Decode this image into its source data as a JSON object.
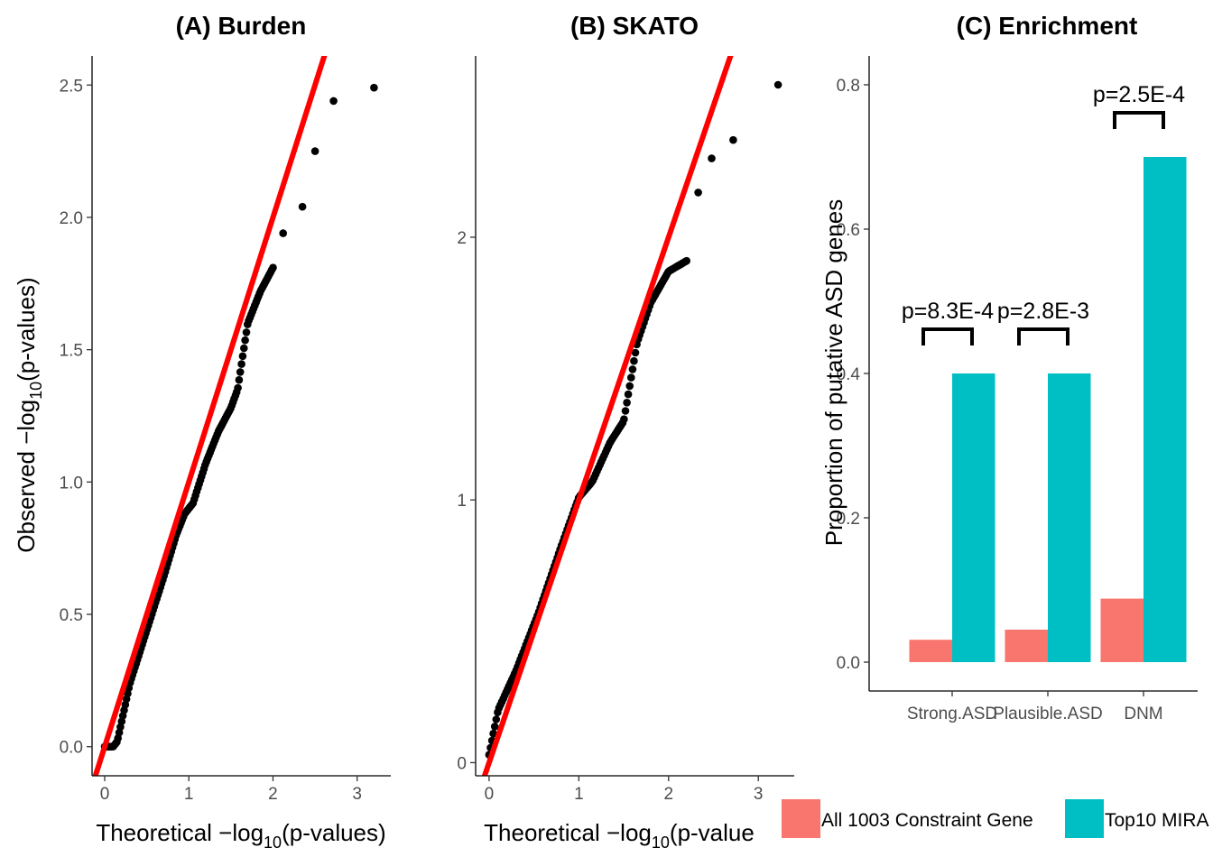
{
  "chart_data": [
    {
      "id": "burden",
      "type": "scatter",
      "title": "(A) Burden",
      "xlabel": {
        "prefix": "Theoretical −log",
        "sub": "10",
        "suffix": "(p-values)"
      },
      "ylabel": {
        "prefix": "Observed −log",
        "sub": "10",
        "suffix": "(p-values)"
      },
      "xlim": [
        -0.15,
        3.4
      ],
      "ylim": [
        -0.11,
        2.61
      ],
      "xticks": [
        0,
        1,
        2,
        3
      ],
      "xtick_labels": [
        "0",
        "1",
        "2",
        "3"
      ],
      "yticks": [
        0,
        0.5,
        1,
        1.5,
        2,
        2.5
      ],
      "ytick_labels": [
        "0.0",
        "0.5",
        "1.0",
        "1.5",
        "2.0",
        "2.5"
      ],
      "reference_line": {
        "slope": 1.0,
        "intercept": 0,
        "color": "#ff0000"
      },
      "point_color": "#000000",
      "grid": false,
      "curve": [
        [
          0.0,
          0.0
        ],
        [
          0.1,
          0.0
        ],
        [
          0.15,
          0.02
        ],
        [
          0.3,
          0.24
        ],
        [
          0.5,
          0.44
        ],
        [
          0.7,
          0.64
        ],
        [
          0.85,
          0.8
        ],
        [
          0.95,
          0.88
        ],
        [
          1.05,
          0.92
        ],
        [
          1.2,
          1.07
        ],
        [
          1.35,
          1.19
        ],
        [
          1.5,
          1.28
        ],
        [
          1.58,
          1.35
        ],
        [
          1.7,
          1.6
        ],
        [
          1.85,
          1.72
        ],
        [
          2.0,
          1.81
        ]
      ],
      "n_points": 140,
      "tail_points": [
        [
          2.12,
          1.94
        ],
        [
          2.35,
          2.04
        ],
        [
          2.5,
          2.25
        ],
        [
          2.72,
          2.44
        ],
        [
          3.2,
          2.49
        ]
      ]
    },
    {
      "id": "skato",
      "type": "scatter",
      "title": "(B) SKATO",
      "xlabel": {
        "prefix": "Theoretical −log",
        "sub": "10",
        "suffix": "(p-value"
      },
      "xlim": [
        -0.15,
        3.4
      ],
      "ylim": [
        -0.05,
        2.69
      ],
      "xticks": [
        0,
        1,
        2,
        3
      ],
      "xtick_labels": [
        "0",
        "1",
        "2",
        "3"
      ],
      "yticks": [
        0,
        1,
        2
      ],
      "ytick_labels": [
        "0",
        "1",
        "2"
      ],
      "reference_line": {
        "slope": 1.0,
        "intercept": 0,
        "color": "#ff0000"
      },
      "point_color": "#000000",
      "grid": false,
      "curve": [
        [
          0.0,
          0.03
        ],
        [
          0.1,
          0.2
        ],
        [
          0.3,
          0.35
        ],
        [
          0.55,
          0.57
        ],
        [
          0.8,
          0.82
        ],
        [
          1.0,
          1.01
        ],
        [
          1.15,
          1.07
        ],
        [
          1.35,
          1.22
        ],
        [
          1.5,
          1.3
        ],
        [
          1.55,
          1.4
        ],
        [
          1.65,
          1.6
        ],
        [
          1.8,
          1.75
        ],
        [
          2.0,
          1.87
        ],
        [
          2.2,
          1.91
        ]
      ],
      "n_points": 140,
      "tail_points": [
        [
          2.33,
          2.17
        ],
        [
          2.48,
          2.3
        ],
        [
          2.72,
          2.37
        ],
        [
          3.22,
          2.58
        ]
      ]
    },
    {
      "id": "enrichment",
      "type": "bar",
      "title": "(C) Enrichment",
      "ylabel": "Proportion of putative ASD genes",
      "categories": [
        "Strong.ASD",
        "Plausible.ASD",
        "DNM"
      ],
      "series": [
        {
          "name": "All 1003 Constraint Gene",
          "color": "#f8766d",
          "values": [
            0.031,
            0.045,
            0.088
          ]
        },
        {
          "name": "Top10 MIRA",
          "color": "#00bfc4",
          "values": [
            0.4,
            0.4,
            0.7
          ]
        }
      ],
      "ylim": [
        -0.04,
        0.84
      ],
      "yticks": [
        0,
        0.2,
        0.4,
        0.6,
        0.8
      ],
      "ytick_labels": [
        "0.0",
        "0.2",
        "0.4",
        "0.6",
        "0.8"
      ],
      "annotations": [
        {
          "category": "Strong.ASD",
          "text": "p=8.3E-4",
          "y": 0.44
        },
        {
          "category": "Plausible.ASD",
          "text": "p=2.8E-3",
          "y": 0.44
        },
        {
          "category": "DNM",
          "text": "p=2.5E-4",
          "y": 0.74
        }
      ],
      "legend_position": "bottom",
      "grid": false
    }
  ]
}
